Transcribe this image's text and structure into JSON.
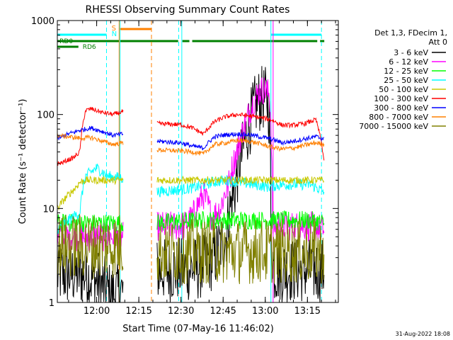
{
  "chart_data": {
    "type": "line",
    "title": "RHESSI Observing Summary Count Rates",
    "xlabel": "Start Time (07-May-16 11:46:02)",
    "ylabel": "Count Rate (s⁻¹ detector⁻¹)",
    "x_unit": "minutes after 11:46:02",
    "xlim": [
      0,
      100
    ],
    "ylim": [
      1,
      1000
    ],
    "yscale": "log",
    "x_ticks": [
      {
        "x": 14,
        "label": "12:00"
      },
      {
        "x": 29,
        "label": "12:15"
      },
      {
        "x": 44,
        "label": "12:30"
      },
      {
        "x": 59,
        "label": "12:45"
      },
      {
        "x": 74,
        "label": "13:00"
      },
      {
        "x": 89,
        "label": "13:15"
      }
    ],
    "y_ticks": [
      {
        "y": 1,
        "label": "1"
      },
      {
        "y": 10,
        "label": "10"
      },
      {
        "y": 100,
        "label": "100"
      },
      {
        "y": 1000,
        "label": "1000"
      }
    ],
    "legend_position": "right",
    "legend_header": [
      "Det 1,3, FDecim 1,",
      "Att 0"
    ],
    "footer": "31-Aug-2022 18:08",
    "annotations": [
      {
        "text": "S",
        "x": 19.3,
        "color": "#ff8000"
      },
      {
        "text": "N",
        "x": 19.3,
        "color": "#00ffff"
      },
      {
        "text": "RD0",
        "x": 0.8,
        "color": "#008000"
      },
      {
        "text": "RD6",
        "x": 9,
        "color": "#008000"
      }
    ],
    "segments": [
      [
        0,
        23.5
      ],
      [
        35.5,
        95
      ]
    ],
    "vlines": [
      {
        "x": 17.5,
        "color": "#00ffff",
        "style": "dashed"
      },
      {
        "x": 22.3,
        "color": "#00ffff",
        "style": "solid"
      },
      {
        "x": 22.0,
        "color": "#ff8000",
        "style": "solid"
      },
      {
        "x": 33.5,
        "color": "#ff8000",
        "style": "dashed"
      },
      {
        "x": 43.2,
        "color": "#00ffff",
        "style": "dashed"
      },
      {
        "x": 44.3,
        "color": "#00ffff",
        "style": "solid"
      },
      {
        "x": 76.0,
        "color": "#00ffff",
        "style": "solid"
      },
      {
        "x": 76.8,
        "color": "#ff00ff",
        "style": "solid"
      },
      {
        "x": 94.0,
        "color": "#00ffff",
        "style": "dashed"
      }
    ],
    "status_bars": [
      {
        "name": "saa",
        "color": "#ff8000",
        "level": 0,
        "spans": [
          [
            22,
            33.5
          ]
        ]
      },
      {
        "name": "night",
        "color": "#00ffff",
        "level": 1,
        "spans": [
          [
            0,
            17.5
          ],
          [
            76,
            94
          ]
        ]
      },
      {
        "name": "rd0",
        "color": "#008000",
        "level": 2,
        "spans": [
          [
            0,
            43
          ],
          [
            44.5,
            47
          ],
          [
            48,
            92.5
          ],
          [
            93.5,
            95
          ]
        ]
      },
      {
        "name": "rd6",
        "color": "#008000",
        "level": 3,
        "spans": [
          [
            0,
            7.5
          ]
        ]
      }
    ],
    "series": [
      {
        "name": "3 - 6 keV",
        "color": "#000000",
        "x": [
          0,
          10,
          16,
          19,
          23.5,
          35.5,
          40,
          50,
          52,
          56,
          60,
          63,
          66,
          69,
          71,
          73,
          75,
          76,
          77,
          80,
          85,
          90,
          95
        ],
        "y": [
          2,
          2,
          1.5,
          1.2,
          1.3,
          2.2,
          2.2,
          2.3,
          2.5,
          3,
          5,
          15,
          40,
          90,
          135,
          150,
          145,
          5,
          2.2,
          2.2,
          2.2,
          2.2,
          2.2
        ]
      },
      {
        "name": "6 - 12 keV",
        "color": "#ff00ff",
        "x": [
          0,
          10,
          23.5,
          35.5,
          45,
          48,
          50,
          52,
          55,
          58,
          61,
          64,
          67,
          70,
          72,
          74,
          75.5,
          76.5,
          77,
          85,
          90,
          95
        ],
        "y": [
          5,
          5,
          5,
          6.5,
          6.5,
          8,
          11,
          14,
          8,
          10,
          18,
          40,
          80,
          140,
          180,
          185,
          160,
          6.5,
          6.5,
          6.5,
          6.5,
          6
        ]
      },
      {
        "name": "12 - 25 keV",
        "color": "#00ff00",
        "x": [
          0,
          10,
          23.5,
          35.5,
          50,
          55,
          60,
          65,
          70,
          75,
          80,
          85,
          90,
          95
        ],
        "y": [
          7,
          7,
          7,
          7,
          7.5,
          7.5,
          7.5,
          7.5,
          7.5,
          7.5,
          7.5,
          7.5,
          7.5,
          7
        ]
      },
      {
        "name": "25 - 50 keV",
        "color": "#00ffff",
        "x": [
          0,
          4,
          8,
          10,
          14,
          18,
          23.5,
          35.5,
          45,
          50,
          55,
          60,
          65,
          70,
          75,
          80,
          85,
          90,
          95
        ],
        "y": [
          6,
          7.5,
          9,
          22,
          27,
          22,
          21,
          15,
          16,
          17,
          19,
          20,
          19,
          18,
          17,
          18,
          18,
          18,
          15
        ]
      },
      {
        "name": "50 - 100 keV",
        "color": "#c8c800",
        "x": [
          0,
          2,
          4,
          6,
          8,
          10,
          23.5,
          35.5,
          95
        ],
        "y": [
          10,
          12,
          14,
          16,
          19,
          20,
          20,
          20,
          20
        ]
      },
      {
        "name": "100 - 300 keV",
        "color": "#ff0000",
        "x": [
          0,
          2,
          4,
          6,
          8,
          10,
          12,
          16,
          20,
          23.5,
          35.5,
          44,
          48,
          52,
          56,
          60,
          64,
          68,
          72,
          76,
          80,
          84,
          88,
          92,
          95
        ],
        "y": [
          30,
          31,
          33,
          35,
          40,
          110,
          115,
          105,
          100,
          108,
          80,
          78,
          72,
          62,
          84,
          95,
          100,
          97,
          93,
          88,
          77,
          77,
          80,
          88,
          30
        ]
      },
      {
        "name": "300 - 800 keV",
        "color": "#0000ff",
        "x": [
          0,
          4,
          8,
          12,
          16,
          20,
          23.5,
          35.5,
          44,
          48,
          52,
          56,
          60,
          64,
          68,
          72,
          76,
          80,
          84,
          88,
          92,
          95
        ],
        "y": [
          55,
          62,
          68,
          72,
          66,
          60,
          62,
          52,
          50,
          46,
          44,
          58,
          61,
          62,
          61,
          58,
          55,
          50,
          52,
          55,
          58,
          55
        ]
      },
      {
        "name": "800 - 7000 keV",
        "color": "#ff8000",
        "x": [
          0,
          4,
          8,
          12,
          16,
          20,
          23.5,
          35.5,
          44,
          48,
          52,
          56,
          60,
          64,
          68,
          72,
          76,
          80,
          84,
          88,
          92,
          95
        ],
        "y": [
          60,
          58,
          56,
          57,
          52,
          48,
          50,
          42,
          41,
          40,
          38,
          48,
          50,
          53,
          52,
          49,
          45,
          43,
          44,
          47,
          50,
          48
        ]
      },
      {
        "name": "7000 - 15000 keV",
        "color": "#808000",
        "x": [
          0,
          10,
          23.5,
          35.5,
          45,
          55,
          65,
          75,
          85,
          95
        ],
        "y": [
          4,
          4,
          4,
          3.5,
          3.5,
          3.5,
          3.5,
          3.5,
          3.5,
          3.5
        ]
      }
    ]
  }
}
